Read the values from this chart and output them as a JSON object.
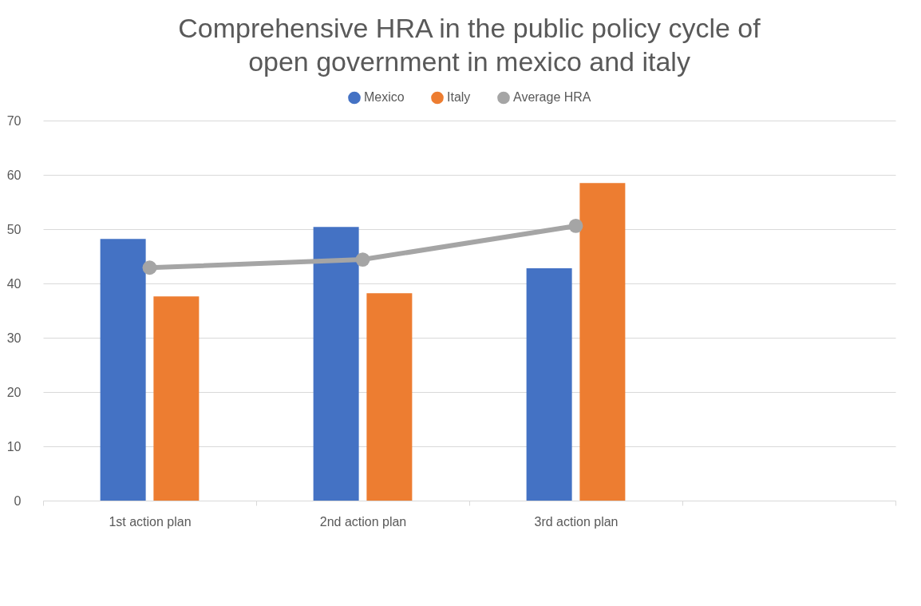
{
  "chart_data": {
    "type": "bar",
    "title": "Comprehensive HRA in the public policy cycle of open government in mexico and italy",
    "categories": [
      "1st action plan",
      "2nd action plan",
      "3rd action plan",
      null
    ],
    "series": [
      {
        "name": "Mexico",
        "color": "#4472c4",
        "values": [
          48.2,
          50.4,
          42.8,
          null
        ]
      },
      {
        "name": "Italy",
        "color": "#ed7d31",
        "values": [
          37.6,
          38.2,
          58.5,
          null
        ]
      },
      {
        "name": "Average HRA",
        "type": "line",
        "color": "#a5a5a5",
        "values": [
          42.9,
          44.4,
          50.6,
          null
        ]
      }
    ],
    "ylim": [
      0,
      70
    ],
    "yticks": [
      0,
      10,
      20,
      30,
      40,
      50,
      60,
      70
    ],
    "grid": "y",
    "legend": "top",
    "marker": "circle"
  }
}
